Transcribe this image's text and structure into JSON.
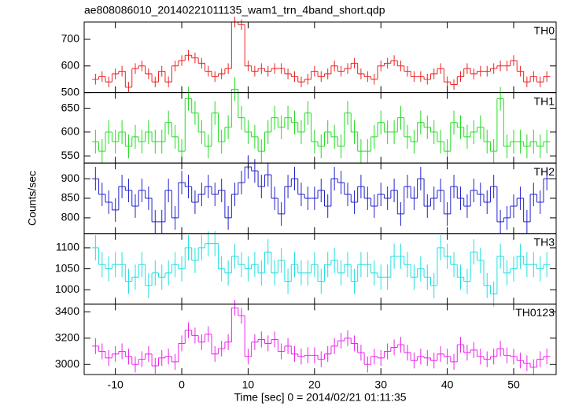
{
  "figure": {
    "title": "ae808086010_20140221011135_wam1_trn_4band_short.qdp",
    "x_label": "Time [sec] 0 = 2014/02/21 01:11:35",
    "y_label": "Counts/sec"
  },
  "chart_data": [
    {
      "type": "step",
      "name": "TH0",
      "color": "#ee2222",
      "yerr": 20,
      "xlim": [
        -14.7,
        56.4
      ],
      "xticks": [
        -10,
        0,
        10,
        20,
        30,
        40,
        50
      ],
      "ylim": [
        500,
        765
      ],
      "yticks": [
        500,
        600,
        700
      ],
      "x": [
        -13,
        -12,
        -11,
        -10,
        -9,
        -8,
        -7,
        -6,
        -5,
        -4,
        -3,
        -2,
        -1,
        0,
        1,
        2,
        3,
        4,
        5,
        6,
        7,
        8,
        9,
        10,
        11,
        12,
        13,
        14,
        15,
        16,
        17,
        18,
        19,
        20,
        21,
        22,
        23,
        24,
        25,
        26,
        27,
        28,
        29,
        30,
        31,
        32,
        33,
        34,
        35,
        36,
        37,
        38,
        39,
        40,
        41,
        42,
        43,
        44,
        45,
        46,
        47,
        48,
        49,
        50,
        51,
        52,
        53,
        54,
        55
      ],
      "values": [
        550,
        560,
        540,
        570,
        580,
        520,
        590,
        600,
        570,
        540,
        580,
        540,
        600,
        620,
        640,
        630,
        610,
        580,
        560,
        570,
        590,
        765,
        755,
        600,
        580,
        590,
        580,
        590,
        590,
        570,
        560,
        540,
        550,
        580,
        560,
        570,
        600,
        580,
        590,
        610,
        570,
        560,
        550,
        600,
        610,
        620,
        600,
        580,
        560,
        560,
        550,
        570,
        590,
        540,
        530,
        560,
        590,
        570,
        580,
        580,
        590,
        600,
        600,
        620,
        580,
        540,
        560,
        540,
        560
      ]
    },
    {
      "type": "step",
      "name": "TH1",
      "color": "#22dd22",
      "yerr": 25,
      "xlim": [
        -14.7,
        56.4
      ],
      "xticks": [
        -10,
        0,
        10,
        20,
        30,
        40,
        50
      ],
      "ylim": [
        535,
        683
      ],
      "yticks": [
        550,
        600,
        650
      ],
      "x": [
        -13,
        -12,
        -11,
        -10,
        -9,
        -8,
        -7,
        -6,
        -5,
        -4,
        -3,
        -2,
        -1,
        0,
        1,
        2,
        3,
        4,
        5,
        6,
        7,
        8,
        9,
        10,
        11,
        12,
        13,
        14,
        15,
        16,
        17,
        18,
        19,
        20,
        21,
        22,
        23,
        24,
        25,
        26,
        27,
        28,
        29,
        30,
        31,
        32,
        33,
        34,
        35,
        36,
        37,
        38,
        39,
        40,
        41,
        42,
        43,
        44,
        45,
        46,
        47,
        48,
        49,
        50,
        51,
        52,
        53,
        54,
        55
      ],
      "values": [
        580,
        560,
        600,
        580,
        600,
        570,
        590,
        580,
        600,
        580,
        580,
        620,
        590,
        560,
        670,
        640,
        600,
        570,
        640,
        580,
        610,
        690,
        630,
        600,
        590,
        560,
        600,
        630,
        610,
        630,
        620,
        600,
        640,
        580,
        570,
        600,
        590,
        570,
        640,
        600,
        560,
        560,
        590,
        620,
        600,
        600,
        630,
        590,
        580,
        620,
        610,
        600,
        580,
        560,
        620,
        610,
        590,
        600,
        610,
        580,
        560,
        670,
        570,
        580,
        580,
        570,
        580,
        570,
        580
      ]
    },
    {
      "type": "step",
      "name": "TH2",
      "color": "#2222cc",
      "yerr": 30,
      "xlim": [
        -14.7,
        56.4
      ],
      "xticks": [
        -10,
        0,
        10,
        20,
        30,
        40,
        50
      ],
      "ylim": [
        760,
        940
      ],
      "yticks": [
        800,
        850,
        900
      ],
      "x": [
        -13,
        -12,
        -11,
        -10,
        -9,
        -8,
        -7,
        -6,
        -5,
        -4,
        -3,
        -2,
        -1,
        0,
        1,
        2,
        3,
        4,
        5,
        6,
        7,
        8,
        9,
        10,
        11,
        12,
        13,
        14,
        15,
        16,
        17,
        18,
        19,
        20,
        21,
        22,
        23,
        24,
        25,
        26,
        27,
        28,
        29,
        30,
        31,
        32,
        33,
        34,
        35,
        36,
        37,
        38,
        39,
        40,
        41,
        42,
        43,
        44,
        45,
        46,
        47,
        48,
        49,
        50,
        51,
        52,
        53,
        54,
        55
      ],
      "values": [
        900,
        860,
        840,
        820,
        880,
        870,
        830,
        870,
        850,
        790,
        790,
        870,
        800,
        890,
        880,
        840,
        860,
        880,
        860,
        870,
        800,
        860,
        890,
        930,
        920,
        880,
        910,
        850,
        810,
        880,
        900,
        860,
        850,
        850,
        870,
        830,
        900,
        890,
        860,
        840,
        880,
        850,
        830,
        860,
        850,
        870,
        810,
        880,
        850,
        900,
        830,
        850,
        870,
        810,
        880,
        850,
        830,
        870,
        860,
        840,
        880,
        790,
        800,
        830,
        850,
        790,
        860,
        840,
        900
      ]
    },
    {
      "type": "step",
      "name": "TH3",
      "color": "#22e0e0",
      "yerr": 30,
      "xlim": [
        -14.7,
        56.4
      ],
      "xticks": [
        -10,
        0,
        10,
        20,
        30,
        40,
        50
      ],
      "ylim": [
        966,
        1134
      ],
      "yticks": [
        1000,
        1050,
        1100
      ],
      "x": [
        -13,
        -12,
        -11,
        -10,
        -9,
        -8,
        -7,
        -6,
        -5,
        -4,
        -3,
        -2,
        -1,
        0,
        1,
        2,
        3,
        4,
        5,
        6,
        7,
        8,
        9,
        10,
        11,
        12,
        13,
        14,
        15,
        16,
        17,
        18,
        19,
        20,
        21,
        22,
        23,
        24,
        25,
        26,
        27,
        28,
        29,
        30,
        31,
        32,
        33,
        34,
        35,
        36,
        37,
        38,
        39,
        40,
        41,
        42,
        43,
        44,
        45,
        46,
        47,
        48,
        49,
        50,
        51,
        52,
        53,
        54,
        55
      ],
      "values": [
        1100,
        1060,
        1050,
        1060,
        1060,
        1020,
        1030,
        1060,
        1010,
        1040,
        1030,
        1040,
        1060,
        1050,
        1100,
        1070,
        1100,
        1110,
        1110,
        1050,
        1040,
        1080,
        1060,
        1050,
        1060,
        1040,
        1090,
        1040,
        1070,
        1020,
        1060,
        1040,
        1040,
        1060,
        1020,
        1060,
        1070,
        1040,
        1060,
        1020,
        1060,
        1060,
        1040,
        1030,
        1030,
        1080,
        1080,
        1060,
        1030,
        1050,
        1030,
        1010,
        1100,
        1080,
        1060,
        1030,
        1020,
        1090,
        1070,
        1010,
        990,
        1080,
        1040,
        1050,
        1080,
        1060,
        1060,
        1050,
        1060
      ]
    },
    {
      "type": "step",
      "name": "TH0123",
      "color": "#ee22ee",
      "yerr": 60,
      "xlim": [
        -14.7,
        56.4
      ],
      "xticks": [
        -10,
        0,
        10,
        20,
        30,
        40,
        50
      ],
      "ylim": [
        2924,
        3459
      ],
      "yticks": [
        3000,
        3200,
        3400
      ],
      "x": [
        -13,
        -12,
        -11,
        -10,
        -9,
        -8,
        -7,
        -6,
        -5,
        -4,
        -3,
        -2,
        -1,
        0,
        1,
        2,
        3,
        4,
        5,
        6,
        7,
        8,
        9,
        10,
        11,
        12,
        13,
        14,
        15,
        16,
        17,
        18,
        19,
        20,
        21,
        22,
        23,
        24,
        25,
        26,
        27,
        28,
        29,
        30,
        31,
        32,
        33,
        34,
        35,
        36,
        37,
        38,
        39,
        40,
        41,
        42,
        43,
        44,
        45,
        46,
        47,
        48,
        49,
        50,
        51,
        52,
        53,
        54,
        55
      ],
      "values": [
        3140,
        3100,
        3050,
        3080,
        3100,
        3060,
        3000,
        3040,
        3080,
        2990,
        3050,
        3060,
        3020,
        3160,
        3260,
        3220,
        3170,
        3230,
        3080,
        3120,
        3170,
        3430,
        3370,
        3060,
        3170,
        3190,
        3160,
        3190,
        3100,
        3140,
        3080,
        3060,
        3070,
        3070,
        3040,
        3080,
        3140,
        3180,
        3200,
        3160,
        3090,
        3000,
        3060,
        3050,
        3100,
        3130,
        3150,
        3090,
        3030,
        3060,
        3050,
        3030,
        3080,
        3060,
        3020,
        3150,
        3090,
        3110,
        3060,
        3040,
        3060,
        3120,
        3070,
        3060,
        3030,
        3010,
        2980,
        3040,
        3060
      ]
    }
  ]
}
